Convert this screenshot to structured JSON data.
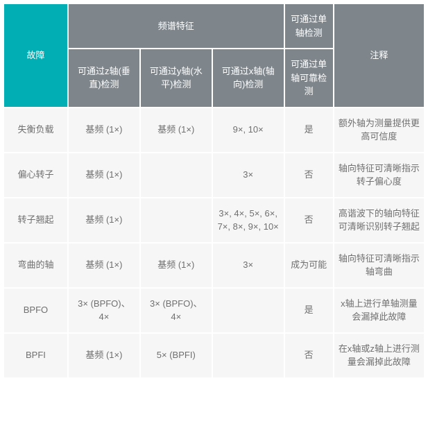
{
  "headers": {
    "fault": "故障",
    "spectral": "频谱特征",
    "single_detect": "可通过单轴检测",
    "notes": "注释",
    "z_axis": "可通过z轴(垂直)检测",
    "y_axis": "可通过y轴(水平)检测",
    "x_axis": "可通过x轴(轴向)检测",
    "single_reliable": "可通过单轴可靠检测"
  },
  "rows": [
    {
      "fault": "失衡负载",
      "z": "基频 (1×)",
      "y": "基频 (1×)",
      "x": "9×, 10×",
      "single": "是",
      "note": "额外轴为测量提供更高可信度"
    },
    {
      "fault": "偏心转子",
      "z": "基频 (1×)",
      "y": "",
      "x": "3×",
      "single": "否",
      "note": "轴向特征可清晰指示转子偏心度"
    },
    {
      "fault": "转子翘起",
      "z": "基频 (1×)",
      "y": "",
      "x": "3×, 4×, 5×, 6×, 7×, 8×, 9×, 10×",
      "single": "否",
      "note": "高谐波下的轴向特征可清晰识别转子翘起"
    },
    {
      "fault": "弯曲的轴",
      "z": "基频 (1×)",
      "y": "基频 (1×)",
      "x": "3×",
      "single": "成为可能",
      "note": "轴向特征可清晰指示轴弯曲"
    },
    {
      "fault": "BPFO",
      "z": "3× (BPFO)、4×",
      "y": "3× (BPFO)、4×",
      "x": "",
      "single": "是",
      "note": "x轴上进行单轴测量会漏掉此故障"
    },
    {
      "fault": "BPFI",
      "z": "基频 (1×)",
      "y": "5× (BPFI)",
      "x": "",
      "single": "否",
      "note": "在x轴或z轴上进行测量会漏掉此故障"
    }
  ],
  "colors": {
    "teal": "#00aeb3",
    "gray": "#7e868c",
    "cell_bg": "#f6f6f6",
    "text": "#6f6f6f",
    "border": "#ffffff"
  }
}
